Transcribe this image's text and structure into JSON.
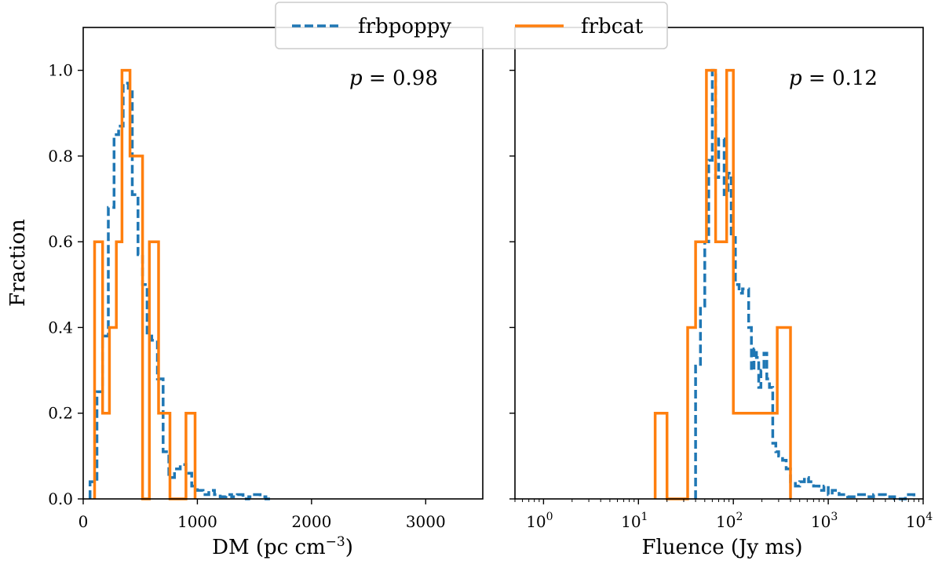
{
  "legend": {
    "entries": [
      {
        "label": "frbpoppy",
        "color": "#1f77b4",
        "style": "dashed"
      },
      {
        "label": "frbcat",
        "color": "#ff7f0e",
        "style": "solid"
      }
    ],
    "placement": "top-center"
  },
  "chart_data": [
    {
      "type": "step",
      "panel": "left",
      "title": "",
      "xlabel": "DM (pc cm",
      "xlabel_sup": "−3",
      "xlabel_close": ")",
      "ylabel": "Fraction",
      "xscale": "linear",
      "xlim": [
        0,
        3500
      ],
      "ylim": [
        0,
        1.1
      ],
      "xticks": [
        0,
        1000,
        2000,
        3000
      ],
      "xtick_labels": [
        "0",
        "1000",
        "2000",
        "3000"
      ],
      "yticks": [
        0.0,
        0.2,
        0.4,
        0.6,
        0.8,
        1.0
      ],
      "ytick_labels": [
        "0.0",
        "0.2",
        "0.4",
        "0.6",
        "0.8",
        "1.0"
      ],
      "annotation": {
        "var": "p",
        "text": " = 0.98"
      },
      "series": [
        {
          "name": "frbpoppy",
          "color": "#1f77b4",
          "style": "dashed",
          "edges": [
            60,
            120,
            170,
            220,
            270,
            310,
            350,
            395,
            430,
            480,
            520,
            560,
            600,
            650,
            700,
            750,
            800,
            850,
            900,
            950,
            1000,
            1050,
            1100,
            1150,
            1200,
            1250,
            1300,
            1350,
            1400,
            1450,
            1500,
            1550,
            1600,
            1650
          ],
          "values": [
            0.04,
            0.25,
            0.38,
            0.68,
            0.85,
            0.87,
            0.97,
            0.95,
            0.71,
            0.57,
            0.5,
            0.38,
            0.37,
            0.28,
            0.11,
            0.05,
            0.07,
            0.08,
            0.06,
            0.03,
            0.02,
            0.01,
            0.02,
            0.01,
            0.005,
            0.01,
            0.005,
            0.01,
            0.0,
            0.005,
            0.01,
            0.005,
            0.0
          ]
        },
        {
          "name": "frbcat",
          "color": "#ff7f0e",
          "style": "solid",
          "edges": [
            100,
            170,
            230,
            290,
            340,
            410,
            520,
            580,
            660,
            760,
            900,
            980
          ],
          "values": [
            0.6,
            0.2,
            0.4,
            0.6,
            1.0,
            0.8,
            0.0,
            0.6,
            0.2,
            0.0,
            0.2
          ]
        }
      ]
    },
    {
      "type": "step",
      "panel": "right",
      "title": "",
      "xlabel": "Fluence (Jy ms)",
      "ylabel": "",
      "xscale": "log",
      "xlim": [
        0.5,
        10000
      ],
      "ylim": [
        0,
        1.1
      ],
      "xticks": [
        1,
        10,
        100,
        1000,
        10000
      ],
      "xtick_labels": [
        {
          "base": "10",
          "exp": "0"
        },
        {
          "base": "10",
          "exp": "1"
        },
        {
          "base": "10",
          "exp": "2"
        },
        {
          "base": "10",
          "exp": "3"
        },
        {
          "base": "10",
          "exp": "4"
        }
      ],
      "annotation": {
        "var": "p",
        "text": " = 0.12"
      },
      "series": [
        {
          "name": "frbpoppy",
          "color": "#1f77b4",
          "style": "dashed",
          "edges": [
            40,
            45,
            50,
            55,
            60,
            65,
            70,
            80,
            88,
            95,
            105,
            115,
            125,
            145,
            155,
            165,
            175,
            185,
            195,
            210,
            225,
            240,
            260,
            280,
            300,
            330,
            360,
            400,
            450,
            500,
            560,
            620,
            700,
            800,
            900,
            1000,
            1100,
            1300,
            1600,
            2000,
            2500,
            3000,
            4000,
            5000,
            6500,
            8000
          ],
          "values": [
            0.31,
            0.45,
            0.6,
            0.79,
            1.0,
            0.75,
            0.84,
            0.71,
            0.76,
            0.61,
            0.5,
            0.48,
            0.49,
            0.4,
            0.3,
            0.35,
            0.33,
            0.26,
            0.3,
            0.34,
            0.28,
            0.26,
            0.13,
            0.11,
            0.1,
            0.09,
            0.07,
            0.04,
            0.03,
            0.04,
            0.05,
            0.04,
            0.03,
            0.02,
            0.03,
            0.01,
            0.02,
            0.01,
            0.005,
            0.01,
            0.005,
            0.01,
            0.005,
            0.0,
            0.01
          ]
        },
        {
          "name": "frbcat",
          "color": "#ff7f0e",
          "style": "solid",
          "edges": [
            15,
            20,
            33,
            40,
            52,
            65,
            85,
            100,
            290,
            400
          ],
          "values": [
            0.2,
            0.0,
            0.4,
            0.6,
            1.0,
            0.6,
            1.0,
            0.2,
            0.4
          ]
        }
      ]
    }
  ]
}
